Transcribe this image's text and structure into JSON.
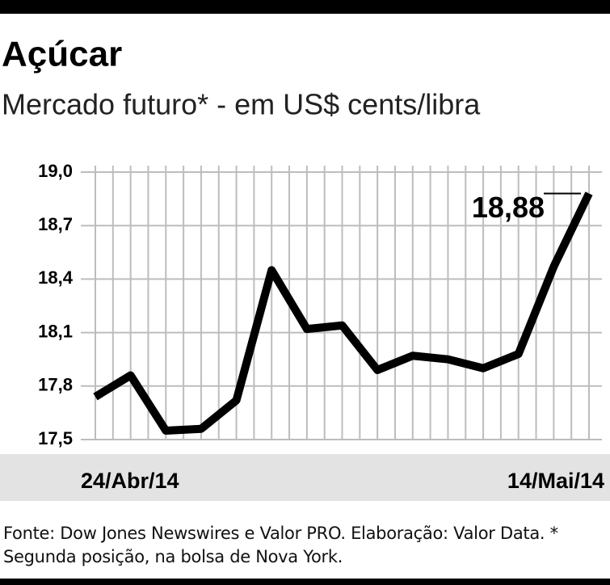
{
  "chart_data": {
    "type": "line",
    "title": "Açúcar",
    "subtitle": "Mercado futuro* - em US$ cents/libra",
    "categories": [
      "24/Abr/14",
      null,
      null,
      null,
      null,
      null,
      null,
      null,
      null,
      null,
      null,
      null,
      null,
      null,
      "14/Mai/14"
    ],
    "series": [
      {
        "name": "Açúcar",
        "color": "#000000",
        "values": [
          17.74,
          17.86,
          17.55,
          17.56,
          17.72,
          18.45,
          18.12,
          18.14,
          17.89,
          17.97,
          17.95,
          17.9,
          17.98,
          18.47,
          18.88
        ],
        "value_labels": [
          null,
          null,
          null,
          null,
          null,
          null,
          null,
          null,
          null,
          null,
          null,
          null,
          null,
          null,
          "18,88"
        ]
      }
    ],
    "ylim": [
      17.5,
      19.0
    ],
    "yticks": [
      {
        "value": 17.5,
        "label": "17,5"
      },
      {
        "value": 17.8,
        "label": "17,8"
      },
      {
        "value": 18.1,
        "label": "18,1"
      },
      {
        "value": 18.4,
        "label": "18,4"
      },
      {
        "value": 18.7,
        "label": "18,7"
      },
      {
        "value": 19.0,
        "label": "19,0"
      }
    ],
    "grid": true,
    "source": "Fonte: Dow Jones Newswires e Valor PRO. Elaboração: Valor Data. * Segunda posição, na bolsa de Nova York."
  }
}
